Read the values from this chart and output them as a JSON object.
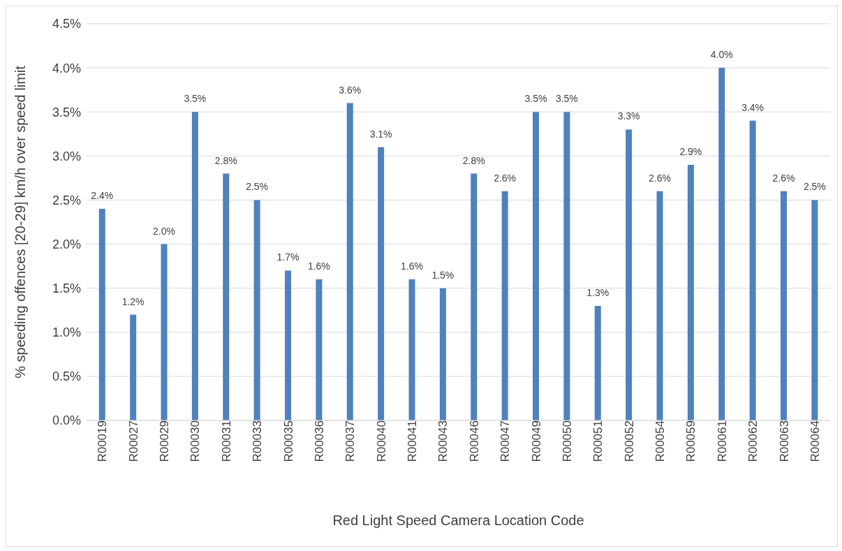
{
  "chart_data": {
    "type": "bar",
    "xlabel": "Red Light Speed Camera Location Code",
    "ylabel": "% speeding offences [20-29] km/h over speed limit",
    "categories": [
      "R00019",
      "R00027",
      "R00029",
      "R00030",
      "R00031",
      "R00033",
      "R00035",
      "R00036",
      "R00037",
      "R00040",
      "R00041",
      "R00043",
      "R00046",
      "R00047",
      "R00049",
      "R00050",
      "R00051",
      "R00052",
      "R00054",
      "R00059",
      "R00061",
      "R00062",
      "R00063",
      "R00064"
    ],
    "values": [
      2.4,
      1.2,
      2.0,
      3.5,
      2.8,
      2.5,
      1.7,
      1.6,
      3.6,
      3.1,
      1.6,
      1.5,
      2.8,
      2.6,
      3.5,
      3.5,
      1.3,
      3.3,
      2.6,
      2.9,
      4.0,
      3.4,
      2.6,
      2.5
    ],
    "value_labels": [
      "2.4%",
      "1.2%",
      "2.0%",
      "3.5%",
      "2.8%",
      "2.5%",
      "1.7%",
      "1.6%",
      "3.6%",
      "3.1%",
      "1.6%",
      "1.5%",
      "2.8%",
      "2.6%",
      "3.5%",
      "3.5%",
      "1.3%",
      "3.3%",
      "2.6%",
      "2.9%",
      "4.0%",
      "3.4%",
      "2.6%",
      "2.5%"
    ],
    "color": "#4f81bd",
    "ylim": [
      0,
      4.5
    ],
    "yticks": [
      {
        "value": 0,
        "label": "0.0%"
      },
      {
        "value": 0.5,
        "label": "0.5%"
      },
      {
        "value": 1,
        "label": "1.0%"
      },
      {
        "value": 1.5,
        "label": "1.5%"
      },
      {
        "value": 2,
        "label": "2.0%"
      },
      {
        "value": 2.5,
        "label": "2.5%"
      },
      {
        "value": 3,
        "label": "3.0%"
      },
      {
        "value": 3.5,
        "label": "3.5%"
      },
      {
        "value": 4,
        "label": "4.0%"
      },
      {
        "value": 4.5,
        "label": "4.5%"
      }
    ],
    "grid": "y"
  }
}
